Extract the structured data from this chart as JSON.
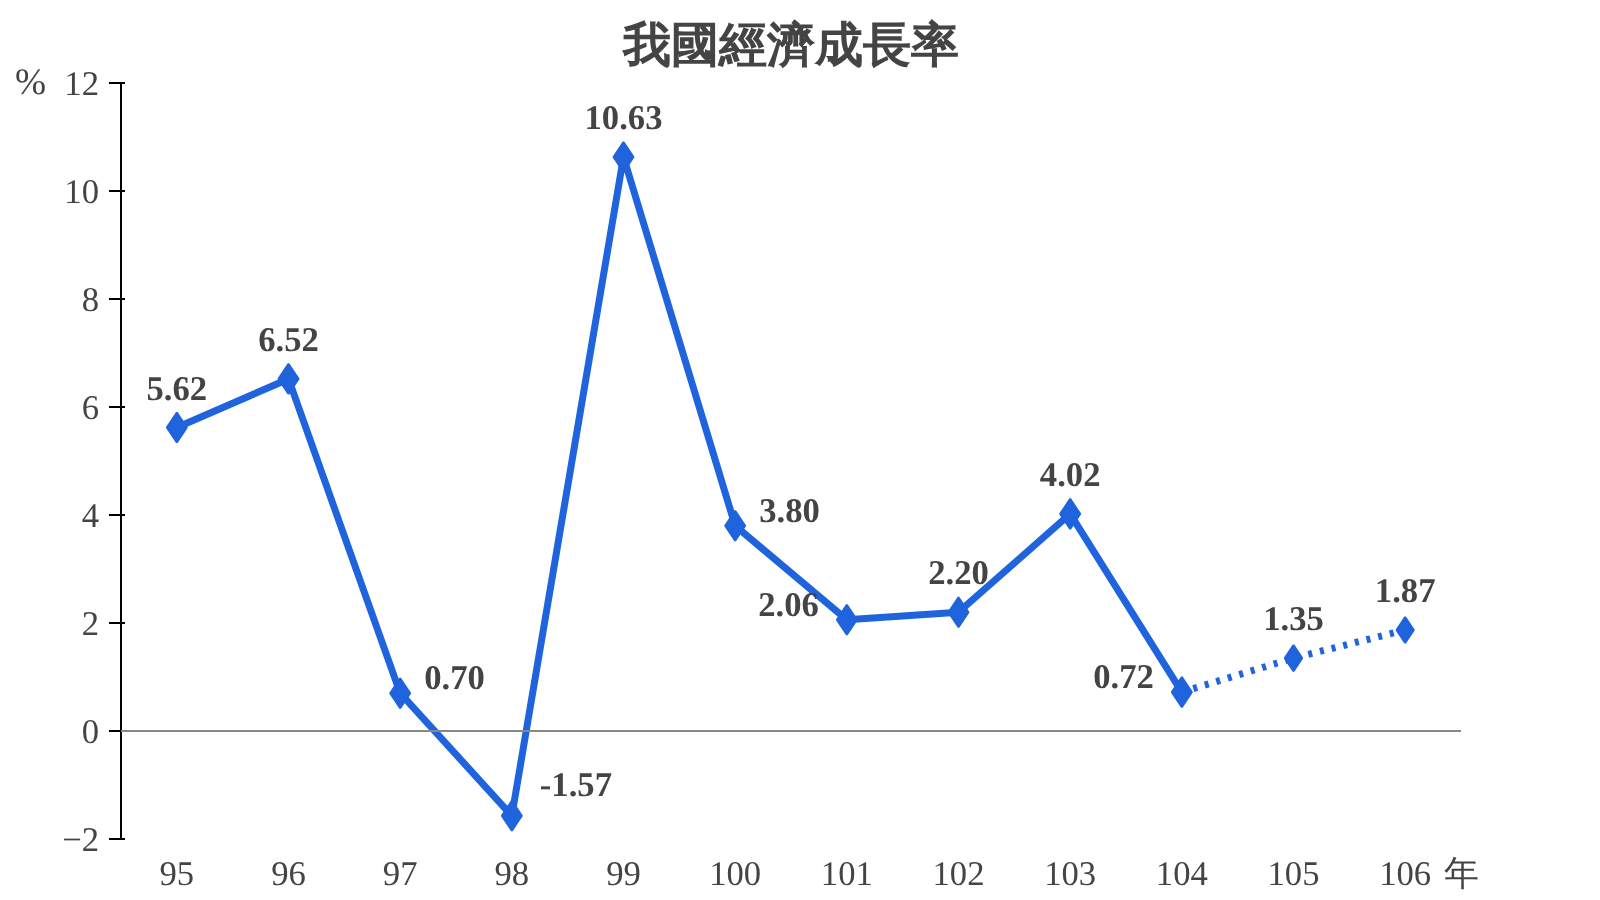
{
  "chart_data": {
    "type": "line",
    "title": "我國經濟成長率",
    "ylabel": "%",
    "xlabel": "年",
    "categories": [
      "95",
      "96",
      "97",
      "98",
      "99",
      "100",
      "101",
      "102",
      "103",
      "104",
      "105",
      "106"
    ],
    "series": [
      {
        "color": "#1f64dc",
        "line_style": "solid",
        "values": [
          5.62,
          6.52,
          0.7,
          -1.57,
          10.63,
          3.8,
          2.06,
          2.2,
          4.02,
          0.72,
          null,
          null
        ],
        "value_labels": [
          "5.62",
          "6.52",
          "0.70",
          "-1.57",
          "10.63",
          "3.80",
          "2.06",
          "2.20",
          "4.02",
          "0.72",
          null,
          null
        ]
      },
      {
        "color": "#1f64dc",
        "line_style": "dotted",
        "values": [
          null,
          null,
          null,
          null,
          null,
          null,
          null,
          null,
          null,
          0.72,
          1.35,
          1.87
        ],
        "value_labels": [
          null,
          null,
          null,
          null,
          null,
          null,
          null,
          null,
          null,
          null,
          "1.35",
          "1.87"
        ]
      }
    ],
    "ylim": [
      -2,
      12
    ],
    "yticks": [
      -2,
      0,
      2,
      4,
      6,
      8,
      10,
      12
    ],
    "grid": false,
    "marker": "diamond",
    "ref_lines": [
      {
        "axis": "y",
        "value": 0,
        "color": "#888888"
      }
    ]
  }
}
